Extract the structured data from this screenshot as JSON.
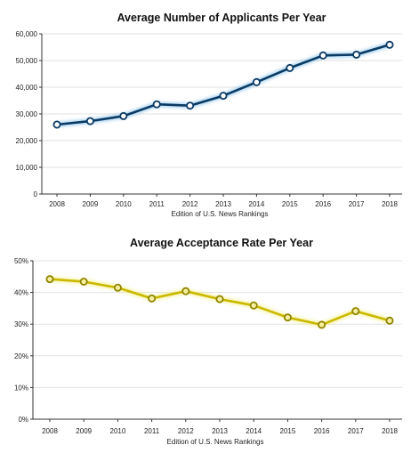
{
  "chart_data": [
    {
      "type": "line",
      "title": "Average Number of Applicants Per Year",
      "xlabel": "Edition of U.S. News Rankings",
      "ylabel": "",
      "x": [
        "2008",
        "2009",
        "2010",
        "2011",
        "2012",
        "2013",
        "2014",
        "2015",
        "2016",
        "2017",
        "2018"
      ],
      "series": [
        {
          "values": [
            26000,
            27300,
            29200,
            33600,
            33100,
            36800,
            41900,
            47200,
            51900,
            52200,
            55900
          ]
        }
      ],
      "ylim": [
        0,
        60000
      ],
      "yticks": [
        0,
        10000,
        20000,
        30000,
        40000,
        50000,
        60000
      ],
      "yticklabels": [
        "0",
        "10,000",
        "20,000",
        "30,000",
        "40,000",
        "50,000",
        "60,000"
      ],
      "grid": true,
      "line_color": "#0b3a63",
      "marker_fill": "#ffffff",
      "marker_stroke": "#0b3a63",
      "glow_color": "#6fb7e6"
    },
    {
      "type": "line",
      "title": "Average Acceptance Rate Per Year",
      "xlabel": "Edition of U.S. News Rankings",
      "ylabel": "",
      "x": [
        "2008",
        "2009",
        "2010",
        "2011",
        "2012",
        "2013",
        "2014",
        "2015",
        "2016",
        "2017",
        "2018"
      ],
      "series": [
        {
          "values": [
            44.2,
            43.4,
            41.5,
            38.1,
            40.4,
            37.9,
            35.9,
            32.1,
            29.8,
            34.1,
            31.1
          ]
        }
      ],
      "ylim": [
        0,
        50
      ],
      "yticks": [
        0,
        10,
        20,
        30,
        40,
        50
      ],
      "yticklabels": [
        "0%",
        "10%",
        "20%",
        "30%",
        "40%",
        "50%"
      ],
      "grid": true,
      "line_color": "#c9b800",
      "marker_fill": "#f6f0a0",
      "marker_stroke": "#8f8400",
      "glow_color": "#f4ee6a"
    }
  ]
}
